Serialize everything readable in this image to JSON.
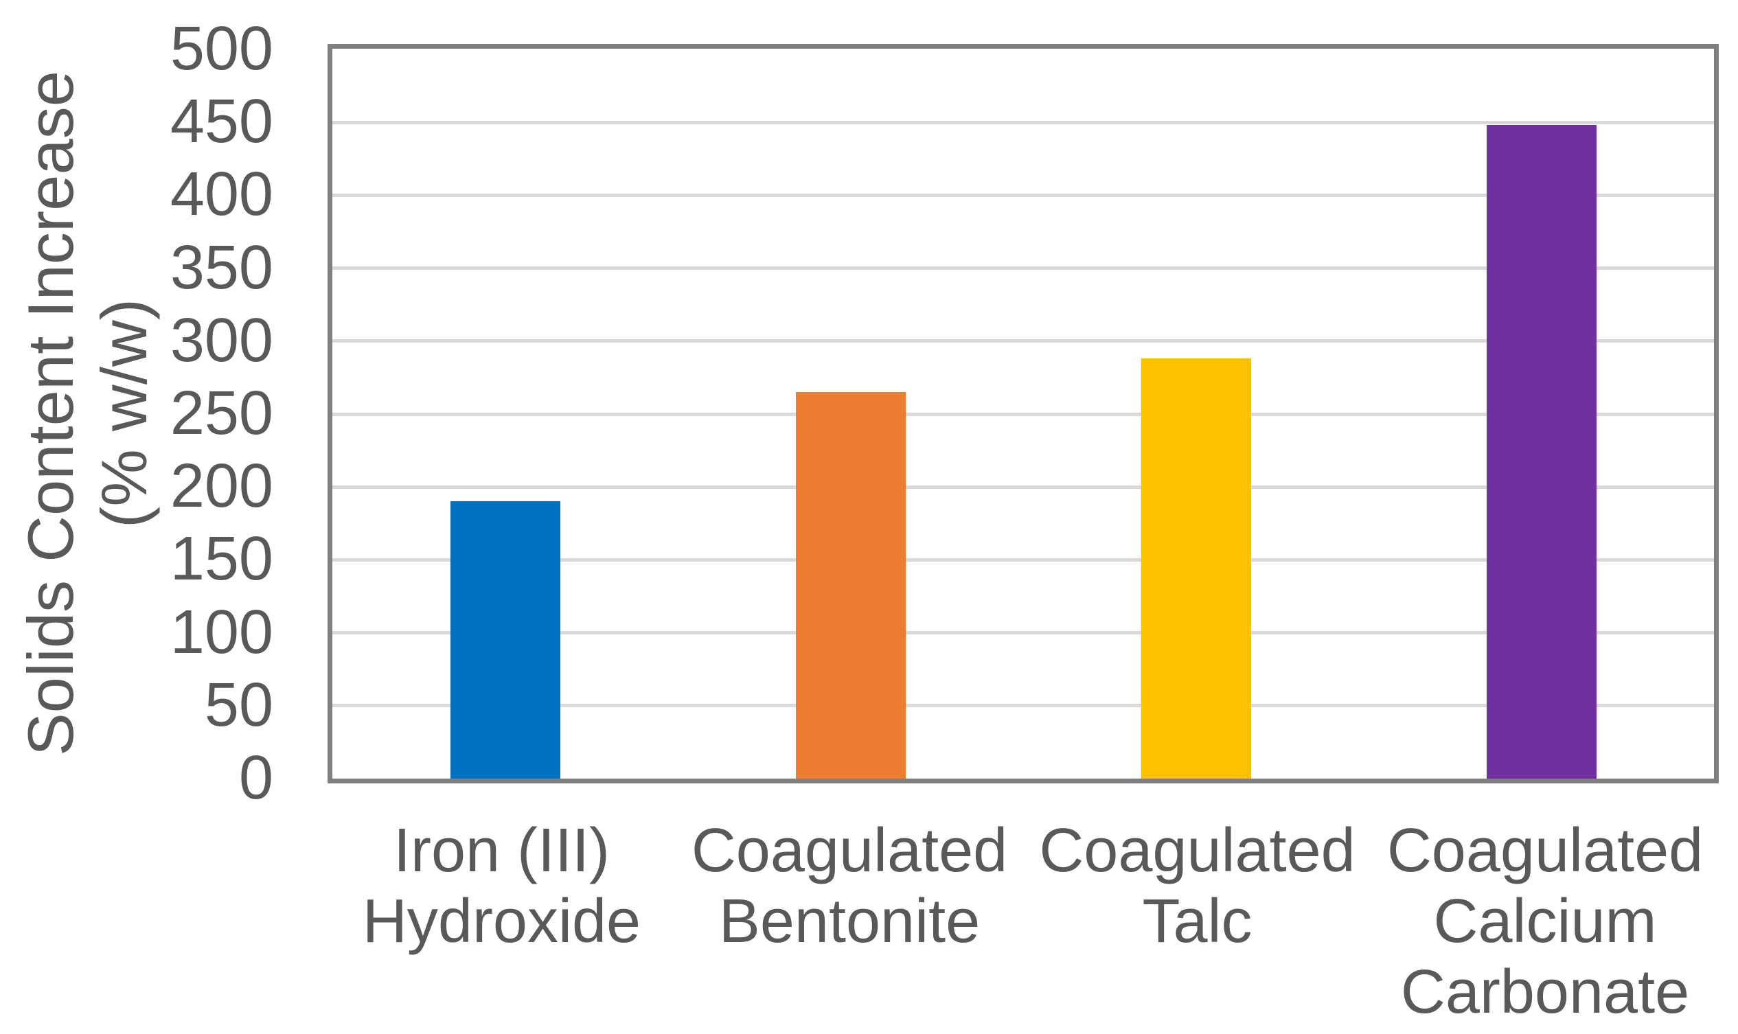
{
  "chart_data": {
    "type": "bar",
    "categories": [
      "Iron (III)\nHydroxide",
      "Coagulated\nBentonite",
      "Coagulated\nTalc",
      "Coagulated\nCalcium\nCarbonate"
    ],
    "values": [
      190,
      265,
      288,
      448
    ],
    "bar_colors": [
      "#0070C0",
      "#ED7D31",
      "#FFC000",
      "#7030A0"
    ],
    "title": "",
    "xlabel": "",
    "ylabel": "Solids Content Increase\n(% w/w)",
    "ylim": [
      0,
      500
    ],
    "yticks": [
      0,
      50,
      100,
      150,
      200,
      250,
      300,
      350,
      400,
      450,
      500
    ],
    "grid": "horizontal",
    "legend": "none"
  },
  "style": {
    "text_color": "#595959",
    "axis_frame_color": "#808080",
    "gridline_color": "#D9D9D9",
    "background_color": "#FFFFFF"
  }
}
